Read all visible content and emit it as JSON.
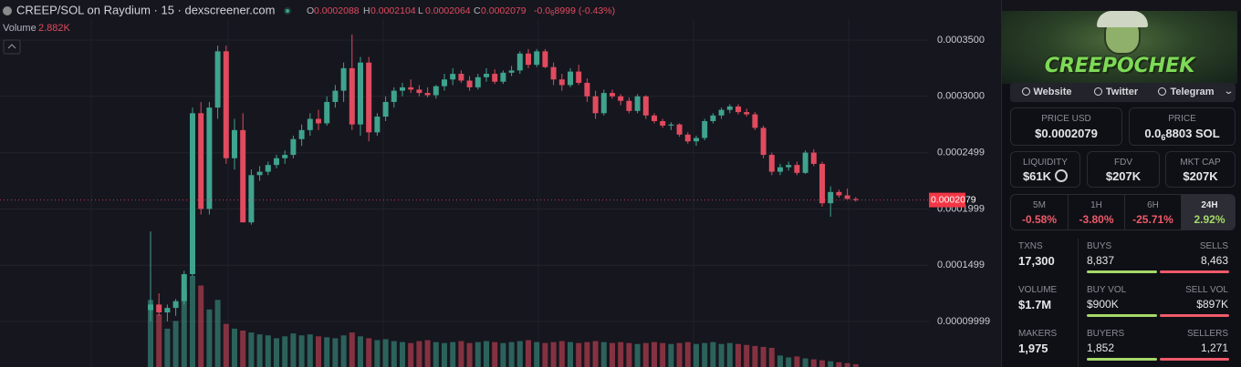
{
  "header": {
    "pair": "CREEP/SOL on Raydium · 15 · dexscreener.com",
    "ohlc": [
      {
        "key": "O",
        "value": "0.0002088"
      },
      {
        "key": "H",
        "value": "0.0002104"
      },
      {
        "key": "L",
        "value": "0.0002064"
      },
      {
        "key": "C",
        "value": "0.0002079"
      }
    ],
    "change": {
      "lead": "-0.0",
      "zeros": "6",
      "rest": "8999 (-0.43%)"
    }
  },
  "chart_data": {
    "type": "candlestick",
    "open": [
      0.00011,
      0.000115,
      0.000108,
      0.000112,
      0.000118,
      0.000142,
      0.000285,
      0.0002,
      0.00029,
      0.00034,
      0.000245,
      0.00027,
      0.000188,
      0.00023,
      0.000233,
      0.000239,
      0.000245,
      0.000248,
      0.000262,
      0.00027,
      0.00028,
      0.000276,
      0.000295,
      0.000305,
      0.000325,
      0.000275,
      0.00033,
      0.000268,
      0.000282,
      0.000295,
      0.000305,
      0.000308,
      0.000306,
      0.000303,
      0.000301,
      0.000309,
      0.000315,
      0.00032,
      0.000314,
      0.000308,
      0.000317,
      0.00032,
      0.000313,
      0.000321,
      0.000323,
      0.000338,
      0.000328,
      0.00034,
      0.000326,
      0.000315,
      0.00031,
      0.000322,
      0.000312,
      0.0003,
      0.000285,
      0.000303,
      0.0003,
      0.000296,
      0.000287,
      0.0003,
      0.000283,
      0.000278,
      0.000274,
      0.000275,
      0.000266,
      0.00026,
      0.000263,
      0.000278,
      0.000283,
      0.000288,
      0.000291,
      0.000286,
      0.000284,
      0.000272,
      0.000248,
      0.000233,
      0.000237,
      0.000239,
      0.000232,
      0.00025,
      0.00024,
      0.000205,
      0.000215,
      0.000212,
      0.0002088
    ],
    "high": [
      0.00018,
      0.000125,
      0.000115,
      0.00012,
      0.000145,
      0.00029,
      0.000295,
      0.000295,
      0.000345,
      0.000345,
      0.00028,
      0.000285,
      0.000235,
      0.000238,
      0.000242,
      0.000248,
      0.000252,
      0.000265,
      0.000275,
      0.000285,
      0.000288,
      0.0003,
      0.00031,
      0.00033,
      0.000355,
      0.000335,
      0.000335,
      0.000285,
      0.0003,
      0.000308,
      0.000312,
      0.000315,
      0.00031,
      0.000308,
      0.00031,
      0.00032,
      0.000325,
      0.000323,
      0.000318,
      0.00032,
      0.000325,
      0.000324,
      0.000323,
      0.000327,
      0.00034,
      0.000342,
      0.000342,
      0.000342,
      0.00033,
      0.00032,
      0.000325,
      0.000328,
      0.000316,
      0.000305,
      0.000306,
      0.000306,
      0.000302,
      0.000299,
      0.000302,
      0.000301,
      0.000285,
      0.00028,
      0.000277,
      0.000276,
      0.000268,
      0.000265,
      0.00028,
      0.000285,
      0.00029,
      0.000293,
      0.000293,
      0.000289,
      0.000286,
      0.000274,
      0.00025,
      0.00024,
      0.000242,
      0.000242,
      0.000252,
      0.000253,
      0.000242,
      0.00022,
      0.000217,
      0.000218,
      0.0002104
    ],
    "low": [
      0.0001,
      0.000105,
      0.0001,
      0.000105,
      0.000115,
      0.00014,
      0.000195,
      0.000195,
      0.00028,
      0.00024,
      0.000235,
      0.00019,
      0.000186,
      0.000225,
      0.00023,
      0.000236,
      0.00024,
      0.000245,
      0.000256,
      0.000265,
      0.00027,
      0.000274,
      0.00029,
      0.000295,
      0.00027,
      0.000265,
      0.00026,
      0.000265,
      0.000278,
      0.00029,
      0.0003,
      0.000303,
      0.0003,
      0.000299,
      0.000298,
      0.000305,
      0.00031,
      0.000312,
      0.000305,
      0.000306,
      0.000313,
      0.000311,
      0.000311,
      0.000318,
      0.00032,
      0.000325,
      0.000326,
      0.000325,
      0.00031,
      0.000305,
      0.000308,
      0.00031,
      0.000295,
      0.00028,
      0.000283,
      0.000298,
      0.000292,
      0.000285,
      0.000285,
      0.00028,
      0.000276,
      0.000272,
      0.00027,
      0.000264,
      0.000258,
      0.000256,
      0.000261,
      0.000276,
      0.00028,
      0.000285,
      0.000284,
      0.000282,
      0.00027,
      0.000245,
      0.00023,
      0.00023,
      0.000234,
      0.00023,
      0.000231,
      0.000238,
      0.000202,
      0.000193,
      0.00021,
      0.00021,
      0.0002064
    ],
    "close": [
      0.000115,
      0.000108,
      0.000112,
      0.000118,
      0.000142,
      0.000285,
      0.0002,
      0.00029,
      0.00034,
      0.000245,
      0.00027,
      0.000188,
      0.00023,
      0.000233,
      0.000239,
      0.000245,
      0.000248,
      0.000262,
      0.00027,
      0.00028,
      0.000276,
      0.000295,
      0.000305,
      0.000325,
      0.000275,
      0.00033,
      0.000268,
      0.000282,
      0.000295,
      0.000305,
      0.000308,
      0.000306,
      0.000303,
      0.000301,
      0.000309,
      0.000315,
      0.00032,
      0.000314,
      0.000308,
      0.000317,
      0.00032,
      0.000313,
      0.000321,
      0.000323,
      0.000338,
      0.000328,
      0.00034,
      0.000326,
      0.000315,
      0.00031,
      0.000322,
      0.000312,
      0.0003,
      0.000285,
      0.000303,
      0.0003,
      0.000296,
      0.000287,
      0.0003,
      0.000283,
      0.000278,
      0.000274,
      0.000275,
      0.000266,
      0.00026,
      0.000263,
      0.000278,
      0.000283,
      0.000288,
      0.000291,
      0.000286,
      0.000284,
      0.000272,
      0.000248,
      0.000233,
      0.000237,
      0.000239,
      0.000232,
      0.00025,
      0.00024,
      0.000205,
      0.000215,
      0.000212,
      0.0002088,
      0.0002079
    ],
    "volume": {
      "label": "Volume",
      "last_label": "2.882K",
      "values": [
        70000,
        55000,
        40000,
        48000,
        80000,
        95000,
        85000,
        60000,
        70000,
        45000,
        40000,
        38000,
        36000,
        34000,
        33000,
        30000,
        32000,
        35000,
        33000,
        34000,
        32000,
        31000,
        30000,
        33000,
        36000,
        32000,
        30000,
        28000,
        29000,
        27000,
        26000,
        25000,
        27000,
        28000,
        26000,
        25000,
        26000,
        27000,
        25000,
        26000,
        27000,
        26000,
        25000,
        26000,
        27000,
        28000,
        26000,
        25000,
        26000,
        27000,
        26000,
        25000,
        26000,
        27000,
        26000,
        25000,
        26000,
        25000,
        24000,
        25000,
        26000,
        25000,
        24000,
        25000,
        26000,
        24000,
        25000,
        26000,
        24000,
        25000,
        24000,
        23000,
        22000,
        21000,
        20000,
        12000,
        10000,
        11000,
        9000,
        8000,
        7000,
        6000,
        5000,
        4000,
        2882
      ]
    },
    "ylim": [
      5.95e-05,
      0.0003856
    ],
    "yticks": [
      {
        "value": 0.00035,
        "label": "0.0003500"
      },
      {
        "value": 0.0003,
        "label": "0.0003000"
      },
      0.0002499,
      0.0001999,
      0.0001499,
      9.999e-05
    ],
    "last_price": 0.0002079,
    "up_color": "#3fa38e",
    "down_color": "#e04b5f",
    "grid": true
  },
  "panel": {
    "banner": "CREEPOCHEK",
    "links": [
      "Website",
      "Twitter",
      "Telegram"
    ],
    "price_usd": {
      "label": "PRICE USD",
      "value": "$0.0002079"
    },
    "price_sol": {
      "label": "PRICE",
      "lead": "0.0",
      "zeros": "6",
      "rest": "8803 SOL"
    },
    "metrics": [
      {
        "label": "LIQUIDITY",
        "value": "$61K"
      },
      {
        "label": "FDV",
        "value": "$207K"
      },
      {
        "label": "MKT CAP",
        "value": "$207K"
      }
    ],
    "changes": [
      {
        "label": "5M",
        "value": "-0.58%"
      },
      {
        "label": "1H",
        "value": "-3.80%"
      },
      {
        "label": "6H",
        "value": "-25.71%"
      },
      {
        "label": "24H",
        "value": "2.92%"
      }
    ],
    "stats": [
      {
        "label": "TXNS",
        "value": "17,300",
        "left_label": "BUYS",
        "left": "8,837",
        "right_label": "SELLS",
        "right": "8,463"
      },
      {
        "label": "VOLUME",
        "value": "$1.7M",
        "left_label": "BUY VOL",
        "left": "$900K",
        "right_label": "SELL VOL",
        "right": "$897K"
      },
      {
        "label": "MAKERS",
        "value": "1,975",
        "left_label": "BUYERS",
        "left": "1,852",
        "right_label": "SELLERS",
        "right": "1,271"
      }
    ]
  }
}
